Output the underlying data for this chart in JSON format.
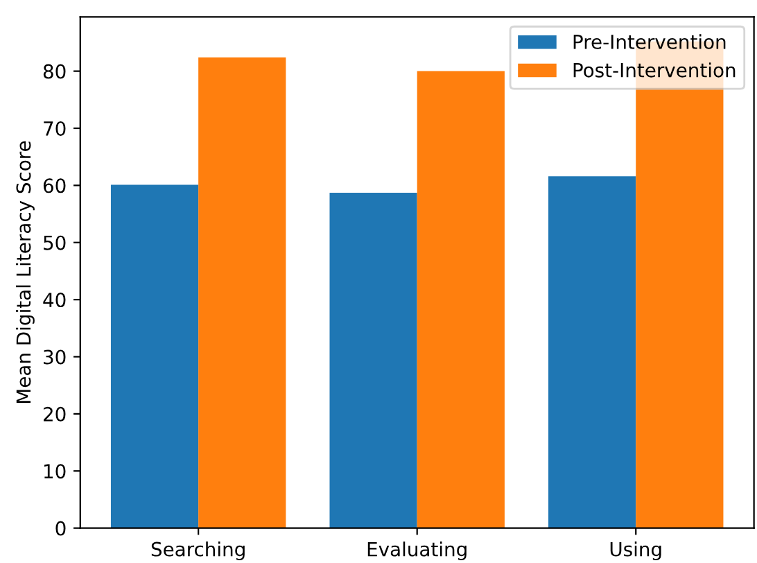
{
  "chart_data": {
    "type": "bar",
    "ylabel": "Mean Digital Literacy Score",
    "categories": [
      "Searching",
      "Evaluating",
      "Using"
    ],
    "series": [
      {
        "name": "Pre-Intervention",
        "color": "#1f77b4",
        "values": [
          60.1,
          58.7,
          61.6
        ]
      },
      {
        "name": "Post-Intervention",
        "color": "#ff7f0e",
        "values": [
          82.4,
          80.0,
          85.2
        ]
      }
    ],
    "ylim": [
      0,
      89.5
    ],
    "yticks": [
      0,
      10,
      20,
      30,
      40,
      50,
      60,
      70,
      80
    ],
    "grid": false,
    "legend": "top right"
  }
}
